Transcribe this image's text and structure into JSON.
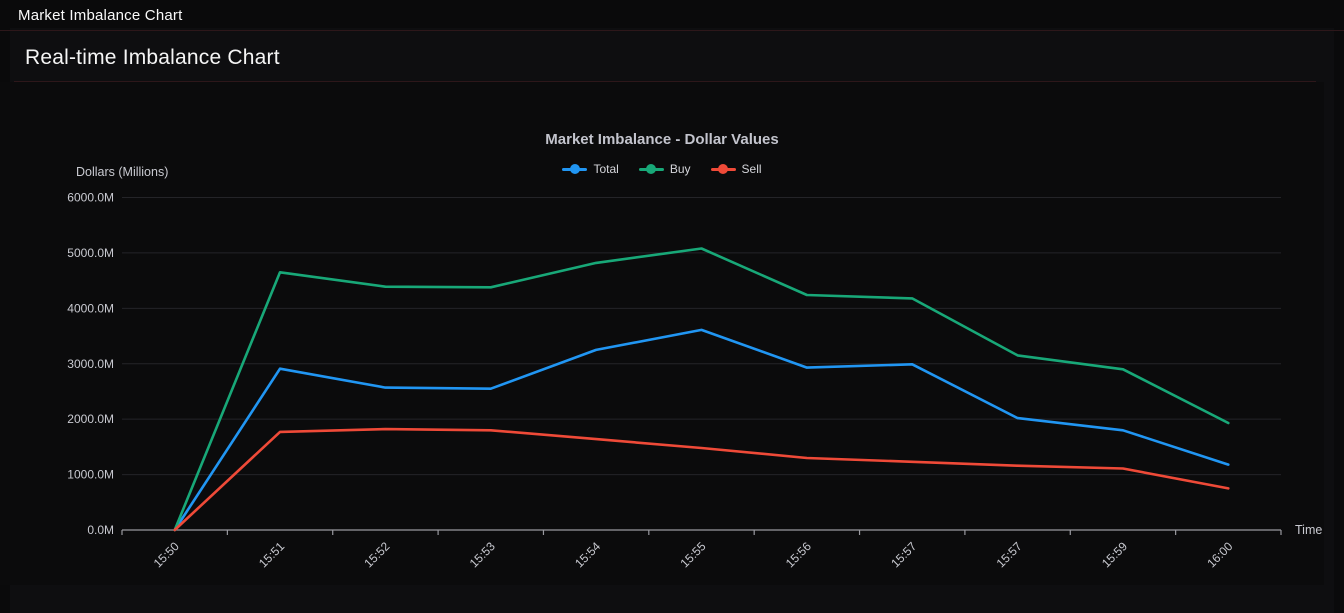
{
  "header": {
    "title": "Market Imbalance Chart"
  },
  "panel": {
    "title": "Real-time Imbalance Chart"
  },
  "chart": {
    "title": "Market Imbalance - Dollar Values",
    "y_unit_label": "Dollars (Millions)",
    "x_axis_title": "Time"
  },
  "chart_data": {
    "type": "line",
    "title": "Market Imbalance - Dollar Values",
    "xlabel": "Time",
    "ylabel": "Dollars (Millions)",
    "categories": [
      "15:50",
      "15:51",
      "15:52",
      "15:53",
      "15:54",
      "15:55",
      "15:56",
      "15:57",
      "15:57",
      "15:59",
      "16:00"
    ],
    "ylim": [
      0,
      6000
    ],
    "ytick_step": 1000,
    "ytick_labels": [
      "0.0M",
      "1000.0M",
      "2000.0M",
      "3000.0M",
      "4000.0M",
      "5000.0M",
      "6000.0M"
    ],
    "grid": true,
    "legend_position": "top-center",
    "series": [
      {
        "name": "Total",
        "color": "#2196f3",
        "values": [
          0,
          2910,
          2570,
          2550,
          3250,
          3610,
          2930,
          2990,
          2020,
          1800,
          1180
        ]
      },
      {
        "name": "Buy",
        "color": "#18a878",
        "values": [
          0,
          4650,
          4390,
          4380,
          4820,
          5080,
          4240,
          4180,
          3150,
          2900,
          1930
        ]
      },
      {
        "name": "Sell",
        "color": "#ef4a38",
        "values": [
          0,
          1770,
          1820,
          1800,
          1640,
          1480,
          1300,
          1230,
          1160,
          1110,
          750
        ]
      }
    ]
  },
  "colors": {
    "background": "#0a0a0b",
    "divider": "#2d171a",
    "grid_line": "#242428",
    "axis_line": "#9a9aa0",
    "tick_label": "#c9cad1",
    "chart_title": "#c3c4cd",
    "legend_text": "#d4d5da"
  }
}
